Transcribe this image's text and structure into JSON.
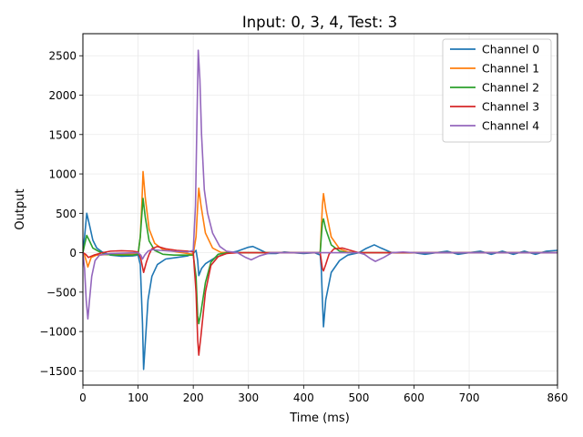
{
  "chart_data": {
    "type": "line",
    "title": "Input: 0, 3, 4, Test: 3",
    "xlabel": "Time (ms)",
    "ylabel": "Output",
    "xlim": [
      0,
      860
    ],
    "ylim": [
      -1680,
      2780
    ],
    "xticks": [
      0,
      100,
      200,
      300,
      400,
      500,
      600,
      700,
      860
    ],
    "yticks": [
      -1500,
      -1000,
      -500,
      0,
      500,
      1000,
      1500,
      2000,
      2500
    ],
    "grid": true,
    "legend_position": "top-right",
    "series": [
      {
        "name": "Channel 0",
        "color": "#1f77b4",
        "points": [
          [
            0,
            0
          ],
          [
            3,
            200
          ],
          [
            7,
            500
          ],
          [
            12,
            350
          ],
          [
            18,
            160
          ],
          [
            25,
            60
          ],
          [
            35,
            10
          ],
          [
            50,
            -30
          ],
          [
            70,
            -45
          ],
          [
            90,
            -40
          ],
          [
            100,
            -30
          ],
          [
            104,
            -150
          ],
          [
            108,
            -900
          ],
          [
            110,
            -1480
          ],
          [
            113,
            -1150
          ],
          [
            118,
            -600
          ],
          [
            125,
            -300
          ],
          [
            135,
            -150
          ],
          [
            150,
            -80
          ],
          [
            170,
            -60
          ],
          [
            190,
            -40
          ],
          [
            200,
            -10
          ],
          [
            205,
            30
          ],
          [
            208,
            -100
          ],
          [
            210,
            -290
          ],
          [
            215,
            -200
          ],
          [
            222,
            -140
          ],
          [
            240,
            -60
          ],
          [
            260,
            -10
          ],
          [
            280,
            20
          ],
          [
            300,
            70
          ],
          [
            308,
            80
          ],
          [
            320,
            40
          ],
          [
            335,
            -10
          ],
          [
            350,
            -10
          ],
          [
            365,
            10
          ],
          [
            380,
            0
          ],
          [
            400,
            -10
          ],
          [
            420,
            0
          ],
          [
            430,
            -30
          ],
          [
            432,
            -200
          ],
          [
            434,
            -600
          ],
          [
            436,
            -940
          ],
          [
            440,
            -600
          ],
          [
            450,
            -250
          ],
          [
            465,
            -100
          ],
          [
            480,
            -30
          ],
          [
            500,
            0
          ],
          [
            512,
            50
          ],
          [
            528,
            100
          ],
          [
            540,
            60
          ],
          [
            560,
            0
          ],
          [
            580,
            0
          ],
          [
            600,
            0
          ],
          [
            620,
            -20
          ],
          [
            640,
            0
          ],
          [
            660,
            20
          ],
          [
            680,
            -20
          ],
          [
            700,
            0
          ],
          [
            720,
            20
          ],
          [
            740,
            -20
          ],
          [
            760,
            20
          ],
          [
            780,
            -20
          ],
          [
            800,
            20
          ],
          [
            820,
            -20
          ],
          [
            840,
            20
          ],
          [
            860,
            30
          ]
        ]
      },
      {
        "name": "Channel 1",
        "color": "#ff7f0e",
        "points": [
          [
            0,
            0
          ],
          [
            3,
            -30
          ],
          [
            6,
            -100
          ],
          [
            9,
            -180
          ],
          [
            15,
            -60
          ],
          [
            25,
            -30
          ],
          [
            40,
            -25
          ],
          [
            80,
            -20
          ],
          [
            100,
            -20
          ],
          [
            104,
            200
          ],
          [
            107,
            650
          ],
          [
            109,
            1030
          ],
          [
            113,
            700
          ],
          [
            120,
            300
          ],
          [
            130,
            120
          ],
          [
            145,
            40
          ],
          [
            170,
            10
          ],
          [
            200,
            -20
          ],
          [
            205,
            200
          ],
          [
            208,
            600
          ],
          [
            210,
            820
          ],
          [
            214,
            600
          ],
          [
            222,
            250
          ],
          [
            235,
            60
          ],
          [
            250,
            5
          ],
          [
            270,
            0
          ],
          [
            300,
            0
          ],
          [
            400,
            0
          ],
          [
            430,
            0
          ],
          [
            432,
            300
          ],
          [
            434,
            600
          ],
          [
            436,
            750
          ],
          [
            440,
            550
          ],
          [
            450,
            200
          ],
          [
            465,
            50
          ],
          [
            480,
            10
          ],
          [
            500,
            0
          ],
          [
            860,
            0
          ]
        ]
      },
      {
        "name": "Channel 2",
        "color": "#2ca02c",
        "points": [
          [
            0,
            0
          ],
          [
            3,
            100
          ],
          [
            7,
            220
          ],
          [
            12,
            150
          ],
          [
            18,
            60
          ],
          [
            28,
            20
          ],
          [
            40,
            -20
          ],
          [
            60,
            -30
          ],
          [
            90,
            -30
          ],
          [
            100,
            -20
          ],
          [
            104,
            200
          ],
          [
            107,
            500
          ],
          [
            109,
            690
          ],
          [
            113,
            450
          ],
          [
            120,
            150
          ],
          [
            130,
            30
          ],
          [
            145,
            -20
          ],
          [
            165,
            -30
          ],
          [
            190,
            -30
          ],
          [
            200,
            -30
          ],
          [
            205,
            -300
          ],
          [
            208,
            -800
          ],
          [
            210,
            -900
          ],
          [
            214,
            -750
          ],
          [
            222,
            -380
          ],
          [
            232,
            -120
          ],
          [
            245,
            -20
          ],
          [
            260,
            0
          ],
          [
            300,
            0
          ],
          [
            400,
            0
          ],
          [
            430,
            0
          ],
          [
            432,
            200
          ],
          [
            434,
            380
          ],
          [
            436,
            430
          ],
          [
            440,
            300
          ],
          [
            450,
            100
          ],
          [
            465,
            20
          ],
          [
            480,
            0
          ],
          [
            500,
            0
          ],
          [
            860,
            0
          ]
        ]
      },
      {
        "name": "Channel 3",
        "color": "#d62728",
        "points": [
          [
            0,
            0
          ],
          [
            5,
            -20
          ],
          [
            10,
            -60
          ],
          [
            20,
            -30
          ],
          [
            35,
            0
          ],
          [
            50,
            20
          ],
          [
            70,
            25
          ],
          [
            90,
            20
          ],
          [
            100,
            10
          ],
          [
            105,
            -80
          ],
          [
            108,
            -180
          ],
          [
            110,
            -250
          ],
          [
            115,
            -120
          ],
          [
            120,
            -20
          ],
          [
            125,
            50
          ],
          [
            135,
            80
          ],
          [
            150,
            50
          ],
          [
            170,
            30
          ],
          [
            190,
            20
          ],
          [
            200,
            10
          ],
          [
            205,
            -500
          ],
          [
            208,
            -1100
          ],
          [
            210,
            -1300
          ],
          [
            214,
            -1050
          ],
          [
            222,
            -500
          ],
          [
            232,
            -160
          ],
          [
            245,
            -50
          ],
          [
            260,
            -10
          ],
          [
            280,
            0
          ],
          [
            300,
            0
          ],
          [
            400,
            0
          ],
          [
            430,
            0
          ],
          [
            432,
            -100
          ],
          [
            434,
            -200
          ],
          [
            436,
            -230
          ],
          [
            440,
            -150
          ],
          [
            446,
            -20
          ],
          [
            455,
            50
          ],
          [
            470,
            60
          ],
          [
            490,
            20
          ],
          [
            500,
            0
          ],
          [
            860,
            0
          ]
        ]
      },
      {
        "name": "Channel 4",
        "color": "#9467bd",
        "points": [
          [
            0,
            0
          ],
          [
            3,
            -200
          ],
          [
            6,
            -600
          ],
          [
            9,
            -840
          ],
          [
            12,
            -600
          ],
          [
            16,
            -300
          ],
          [
            22,
            -100
          ],
          [
            30,
            -30
          ],
          [
            50,
            -10
          ],
          [
            100,
            0
          ],
          [
            105,
            -30
          ],
          [
            108,
            -80
          ],
          [
            112,
            -30
          ],
          [
            118,
            20
          ],
          [
            125,
            40
          ],
          [
            140,
            30
          ],
          [
            160,
            20
          ],
          [
            190,
            10
          ],
          [
            200,
            30
          ],
          [
            204,
            600
          ],
          [
            207,
            1800
          ],
          [
            209,
            2570
          ],
          [
            212,
            2200
          ],
          [
            215,
            1500
          ],
          [
            220,
            800
          ],
          [
            226,
            500
          ],
          [
            235,
            250
          ],
          [
            248,
            80
          ],
          [
            260,
            20
          ],
          [
            280,
            0
          ],
          [
            295,
            -60
          ],
          [
            305,
            -90
          ],
          [
            320,
            -40
          ],
          [
            340,
            0
          ],
          [
            400,
            0
          ],
          [
            500,
            0
          ],
          [
            510,
            -20
          ],
          [
            520,
            -70
          ],
          [
            530,
            -110
          ],
          [
            545,
            -60
          ],
          [
            560,
            0
          ],
          [
            580,
            10
          ],
          [
            600,
            0
          ],
          [
            860,
            0
          ]
        ]
      }
    ]
  }
}
